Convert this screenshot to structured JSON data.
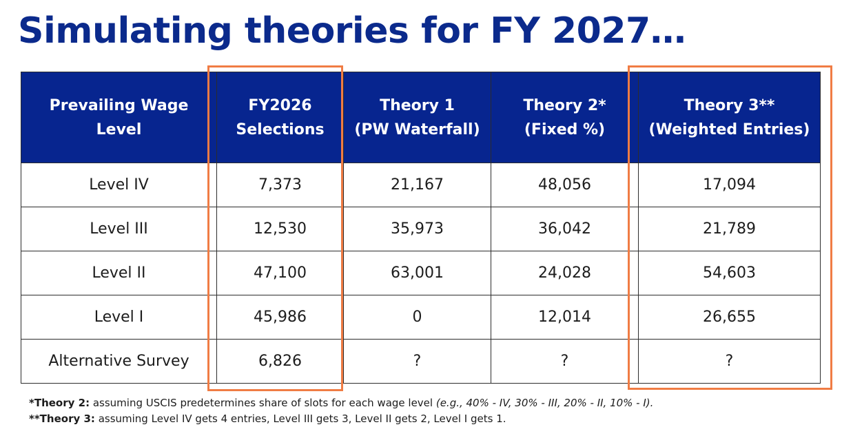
{
  "title": "Simulating theories for FY 2027…",
  "table": {
    "headers": [
      [
        "Prevailing Wage",
        "Level"
      ],
      [
        "FY2026",
        "Selections"
      ],
      [
        "Theory 1",
        "(PW Waterfall)"
      ],
      [
        "Theory 2*",
        "(Fixed %)"
      ],
      [
        "Theory 3**",
        "(Weighted Entries)"
      ]
    ],
    "rows": [
      [
        "Level IV",
        "7,373",
        "21,167",
        "48,056",
        "17,094"
      ],
      [
        "Level III",
        "12,530",
        "35,973",
        "36,042",
        "21,789"
      ],
      [
        "Level II",
        "47,100",
        "63,001",
        "24,028",
        "54,603"
      ],
      [
        "Level I",
        "45,986",
        "0",
        "12,014",
        "26,655"
      ],
      [
        "Alternative Survey",
        "6,826",
        "?",
        "?",
        "?"
      ]
    ]
  },
  "highlight_color": "#f07c44",
  "header_color": "#07258f",
  "title_color": "#0b2a8c",
  "footnotes": {
    "theory2_label": "*Theory 2:",
    "theory2_text": " assuming USCIS predetermines share of slots for each wage level ",
    "theory2_example": "(e.g., 40% - IV, 30% - III, 20% - II, 10% - I).",
    "theory3_label": "**Theory 3:",
    "theory3_text": " assuming Level IV gets 4 entries, Level III gets 3, Level II gets 2, Level I gets 1."
  }
}
